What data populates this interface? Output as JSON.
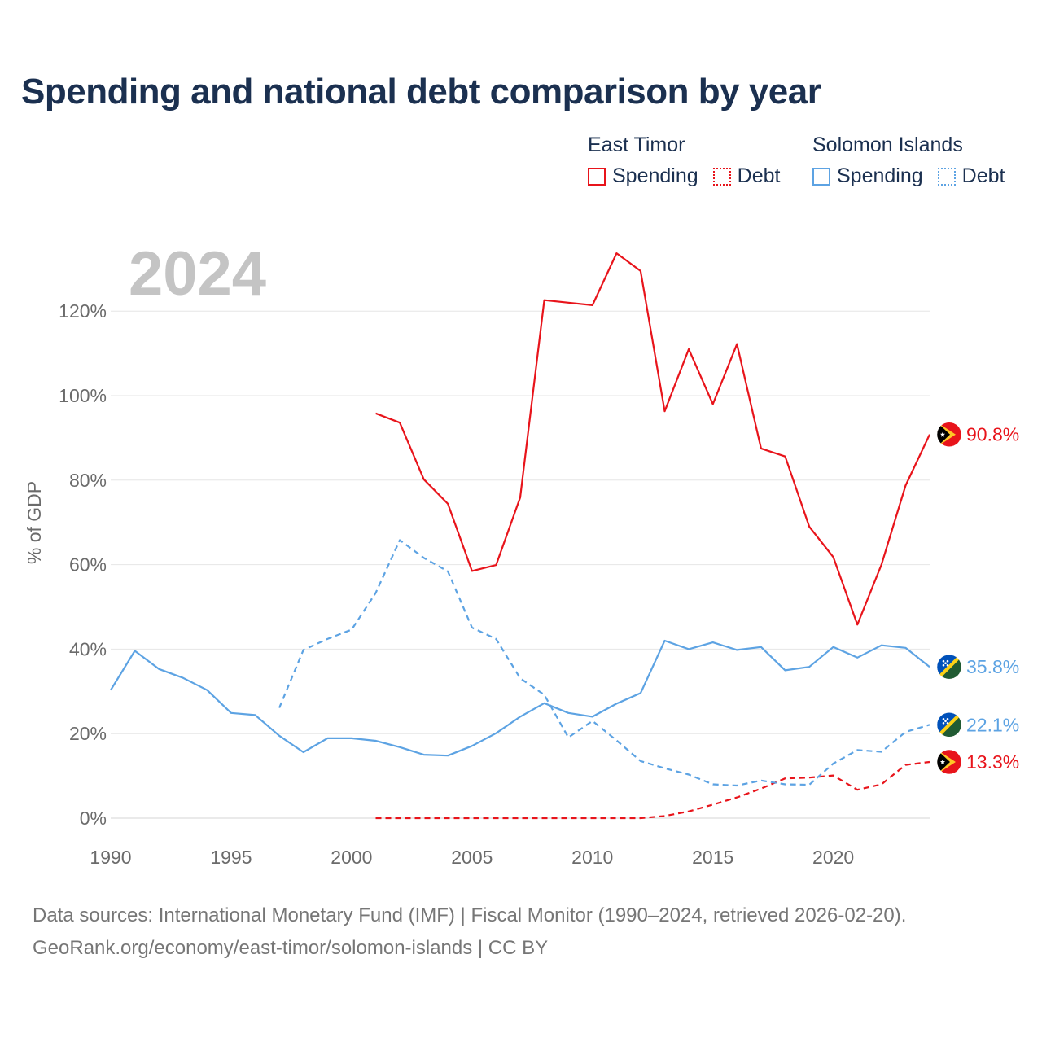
{
  "chart_data": {
    "type": "line",
    "title": "Spending and national debt comparison by year",
    "current_year_label": "2024",
    "ylabel": "% of GDP",
    "xlim": [
      1990,
      2024
    ],
    "ylim": [
      0,
      130
    ],
    "yticks": [
      0,
      20,
      40,
      60,
      80,
      100,
      120
    ],
    "ytick_labels": [
      "0%",
      "20%",
      "40%",
      "60%",
      "80%",
      "100%",
      "120%"
    ],
    "xticks": [
      1990,
      1995,
      2000,
      2005,
      2010,
      2015,
      2020
    ],
    "xtick_labels": [
      "1990",
      "1995",
      "2000",
      "2005",
      "2010",
      "2015",
      "2020"
    ],
    "colors": {
      "east_timor": "#e8141b",
      "solomon_islands": "#5da3e3"
    },
    "legend": {
      "groups": [
        {
          "country": "East Timor",
          "spending_label": "Spending",
          "debt_label": "Debt"
        },
        {
          "country": "Solomon Islands",
          "spending_label": "Spending",
          "debt_label": "Debt"
        }
      ]
    },
    "series": [
      {
        "name": "East Timor Spending",
        "country": "East Timor",
        "kind": "spending",
        "style": "solid",
        "start_year": 2001,
        "values": [
          95.8,
          93.6,
          80.2,
          74.4,
          58.5,
          59.9,
          75.9,
          122.6,
          122.0,
          121.4,
          133.7,
          129.5,
          96.3,
          111.0,
          98.0,
          112.2,
          87.5,
          85.6,
          69.0,
          61.8,
          45.8,
          60.0,
          78.7,
          90.8
        ],
        "end_label": "90.8%"
      },
      {
        "name": "East Timor Debt",
        "country": "East Timor",
        "kind": "debt",
        "style": "dashed",
        "start_year": 2001,
        "values": [
          0,
          0,
          0,
          0,
          0,
          0,
          0,
          0,
          0,
          0,
          0,
          0,
          0.5,
          1.6,
          3.2,
          4.9,
          7.0,
          9.4,
          9.6,
          10.1,
          6.7,
          8.0,
          12.6,
          13.3
        ],
        "end_label": "13.3%"
      },
      {
        "name": "Solomon Islands Spending",
        "country": "Solomon Islands",
        "kind": "spending",
        "style": "solid",
        "start_year": 1990,
        "values": [
          30.3,
          39.6,
          35.3,
          33.2,
          30.3,
          24.9,
          24.4,
          19.5,
          15.6,
          18.9,
          18.9,
          18.3,
          16.8,
          15.0,
          14.8,
          17.1,
          20.1,
          24.0,
          27.2,
          24.9,
          24.0,
          27.1,
          29.6,
          42.0,
          40.0,
          41.6,
          39.8,
          40.5,
          35.0,
          35.8,
          40.5,
          38.0,
          40.9,
          40.3,
          35.8
        ],
        "end_label": "35.8%"
      },
      {
        "name": "Solomon Islands Debt",
        "country": "Solomon Islands",
        "kind": "debt",
        "style": "dashed",
        "start_year": 1997,
        "values": [
          26.1,
          39.8,
          42.4,
          44.6,
          53.3,
          65.8,
          61.6,
          58.4,
          45.1,
          42.4,
          33.1,
          29.2,
          19.1,
          23.0,
          18.4,
          13.5,
          11.8,
          10.3,
          8.0,
          7.7,
          8.9,
          8.0,
          7.9,
          12.9,
          16.1,
          15.7,
          20.4,
          22.1
        ],
        "end_label": "22.1%"
      }
    ]
  },
  "footer": {
    "source_line": "Data sources: International Monetary Fund (IMF) | Fiscal Monitor (1990–2024, retrieved 2026-02-20).",
    "attribution_line": "GeoRank.org/economy/east-timor/solomon-islands | CC BY"
  }
}
